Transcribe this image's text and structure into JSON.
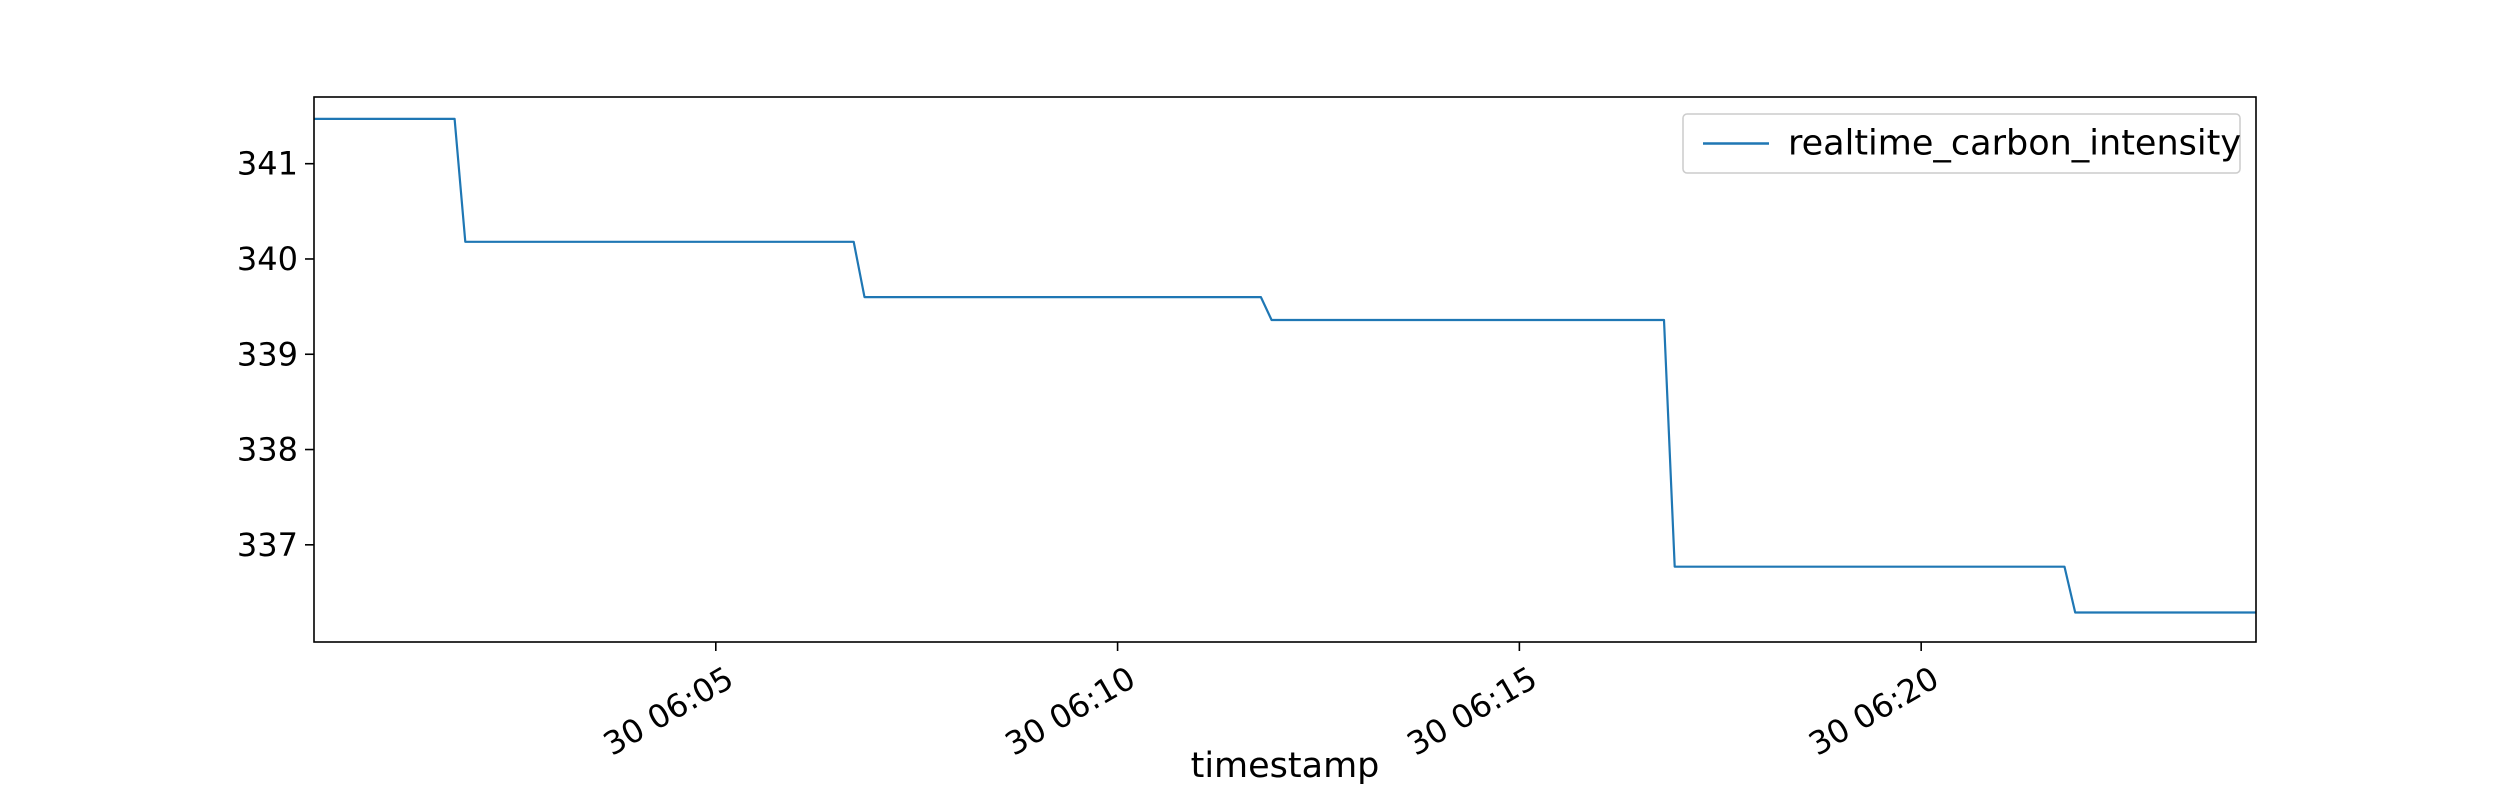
{
  "chart_data": {
    "type": "line",
    "title": "",
    "xlabel": "timestamp",
    "ylabel": "",
    "x_type": "time",
    "xlim": [
      "06:00:00",
      "06:24:10"
    ],
    "ylim": [
      335.98,
      341.7
    ],
    "x_ticks": [
      {
        "time": "06:05:00",
        "label": "30 06:05"
      },
      {
        "time": "06:10:00",
        "label": "30 06:10"
      },
      {
        "time": "06:15:00",
        "label": "30 06:15"
      },
      {
        "time": "06:20:00",
        "label": "30 06:20"
      }
    ],
    "y_ticks": [
      337,
      338,
      339,
      340,
      341
    ],
    "y_tick_labels": [
      "337",
      "338",
      "339",
      "340",
      "341"
    ],
    "grid": false,
    "legend": {
      "position": "upper-right"
    },
    "series": [
      {
        "name": "realtime_carbon_intensity",
        "color": "#1f77b4",
        "points": [
          {
            "time": "06:00:00",
            "value": 341.47
          },
          {
            "time": "06:01:45",
            "value": 341.47
          },
          {
            "time": "06:01:53",
            "value": 340.18
          },
          {
            "time": "06:06:43",
            "value": 340.18
          },
          {
            "time": "06:06:51",
            "value": 339.6
          },
          {
            "time": "06:11:47",
            "value": 339.6
          },
          {
            "time": "06:11:55",
            "value": 339.36
          },
          {
            "time": "06:16:48",
            "value": 339.36
          },
          {
            "time": "06:16:56",
            "value": 336.77
          },
          {
            "time": "06:21:47",
            "value": 336.77
          },
          {
            "time": "06:21:55",
            "value": 336.29
          },
          {
            "time": "06:24:10",
            "value": 336.29
          }
        ]
      }
    ]
  }
}
